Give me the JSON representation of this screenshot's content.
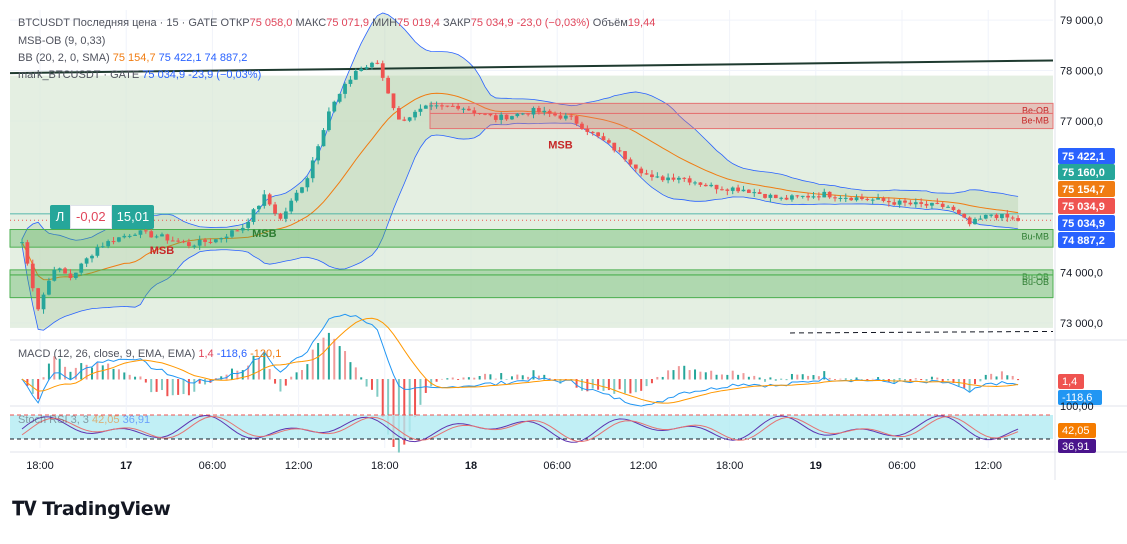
{
  "header": {
    "symbol_line": {
      "prefix": "BTCUSDT Последняя цена · 15 · GATE  ОТКР",
      "open": "75 058,0",
      "high_label": "МАКС",
      "high": "75 071,9",
      "low_label": "МИН",
      "low": "75 019,4",
      "close_label": "ЗАКР",
      "close": "75 034,9",
      "change": "-23,0 (−0,03%)",
      "volume_label": "Объём",
      "volume": "19,44"
    },
    "msb_ob": "MSB-OB (9, 0,33)",
    "bb": {
      "label": "BB (20, 2, 0, SMA)",
      "basis": "75 154,7",
      "upper": "75 422,1",
      "lower": "74 887,2"
    },
    "mark": {
      "label": "mark_BTCUSDT · GATE",
      "value": "75 034,9",
      "change": "-23,9 (−0,03%)"
    }
  },
  "trade_widget": {
    "buy_label": "Л",
    "spread": "-0,02",
    "value": "15,01"
  },
  "macd_legend": {
    "label": "MACD (12, 26, close, 9, EMA, EMA)",
    "hist": "1,4",
    "macd": "-118,6",
    "signal": "-120,1"
  },
  "stoch_legend": {
    "label": "Stoch RSI 3, 3",
    "k": "42,05",
    "d": "36,91"
  },
  "brand": {
    "name": "TradingView"
  },
  "colors": {
    "up": "#26a69a",
    "down": "#ef5350",
    "bb_fill": "#d9e8d5",
    "bb_band": "#2962ff",
    "basis": "#f07c12",
    "trend": "#1e3a2f",
    "zone_green": "#4caf50",
    "zone_red": "#e57373",
    "macd": "#2196f3",
    "signal": "#ff9800",
    "stoch_fill": "#b2ebf2"
  },
  "chart_data": [
    {
      "type": "candlestick",
      "title": "BTCUSDT · 15 · GATE",
      "x_ticks": [
        "18:00",
        "17",
        "06:00",
        "12:00",
        "18:00",
        "18",
        "06:00",
        "12:00",
        "18:00",
        "19",
        "06:00",
        "12:00"
      ],
      "y_ticks": [
        "79 000,0",
        "78 000,0",
        "77 000,0",
        "74 000,0",
        "73 000,0"
      ],
      "ylim": [
        72700,
        79200
      ],
      "anchors": [
        {
          "t": 0,
          "p": 74600
        },
        {
          "t": 3,
          "p": 73300
        },
        {
          "t": 6,
          "p": 74100
        },
        {
          "t": 9,
          "p": 73900
        },
        {
          "t": 14,
          "p": 74500
        },
        {
          "t": 17,
          "p": 74650
        },
        {
          "t": 21,
          "p": 74800
        },
        {
          "t": 26,
          "p": 74700
        },
        {
          "t": 31,
          "p": 74550
        },
        {
          "t": 36,
          "p": 74650
        },
        {
          "t": 41,
          "p": 74900
        },
        {
          "t": 45,
          "p": 75500
        },
        {
          "t": 48,
          "p": 75050
        },
        {
          "t": 53,
          "p": 75900
        },
        {
          "t": 57,
          "p": 77200
        },
        {
          "t": 62,
          "p": 78000
        },
        {
          "t": 66,
          "p": 78150
        },
        {
          "t": 70,
          "p": 77000
        },
        {
          "t": 75,
          "p": 77250
        },
        {
          "t": 81,
          "p": 77300
        },
        {
          "t": 88,
          "p": 77050
        },
        {
          "t": 95,
          "p": 77200
        },
        {
          "t": 102,
          "p": 77050
        },
        {
          "t": 110,
          "p": 76450
        },
        {
          "t": 117,
          "p": 75850
        },
        {
          "t": 122,
          "p": 75900
        },
        {
          "t": 128,
          "p": 75700
        },
        {
          "t": 134,
          "p": 75650
        },
        {
          "t": 141,
          "p": 75450
        },
        {
          "t": 149,
          "p": 75550
        },
        {
          "t": 157,
          "p": 75450
        },
        {
          "t": 165,
          "p": 75350
        },
        {
          "t": 172,
          "p": 75300
        },
        {
          "t": 176,
          "p": 74950
        },
        {
          "t": 180,
          "p": 75150
        },
        {
          "t": 185,
          "p": 75035
        }
      ],
      "price_labels": [
        {
          "value": "75 422,1",
          "color": "#2962ff",
          "price": 75422
        },
        {
          "value": "75 160,0",
          "color": "#26a69a",
          "price": 75160
        },
        {
          "value": "75 154,7",
          "color": "#f07c12",
          "price": 75154
        },
        {
          "value": "75 034,9",
          "color": "#ef5350",
          "price": 75034
        },
        {
          "value": "75 034,9",
          "color": "#2962ff",
          "price": 74990
        },
        {
          "value": "74 887,2",
          "color": "#2962ff",
          "price": 74887
        }
      ],
      "zones": [
        {
          "label": "Be-OB",
          "kind": "red",
          "top": 77350,
          "bottom": 77150
        },
        {
          "label": "Be-MB",
          "kind": "red",
          "top": 77150,
          "bottom": 76850
        },
        {
          "label": "Bu-MB",
          "kind": "green",
          "top": 74850,
          "bottom": 74500
        },
        {
          "label": "Bu-OB",
          "kind": "green",
          "top": 74050,
          "bottom": 73950
        },
        {
          "label": "Bu-OB",
          "kind": "green",
          "top": 73950,
          "bottom": 73500
        }
      ],
      "annotations": [
        {
          "text": "MSB",
          "color": "#2e7d32",
          "t": 45,
          "price": 74900
        },
        {
          "text": "MSB",
          "color": "#c62828",
          "t": 26,
          "price": 74560
        },
        {
          "text": "MSB",
          "color": "#c62828",
          "t": 100,
          "price": 76650
        }
      ],
      "trendline": {
        "t0": 0,
        "p0": 77950,
        "t1": 190,
        "p1": 78200
      }
    },
    {
      "type": "macd",
      "hist_label": "1,4",
      "macd_label": "-118,6"
    },
    {
      "type": "stochastic",
      "y_tick": "100,00",
      "k_label": "42,05",
      "d_label": "36,91"
    }
  ]
}
